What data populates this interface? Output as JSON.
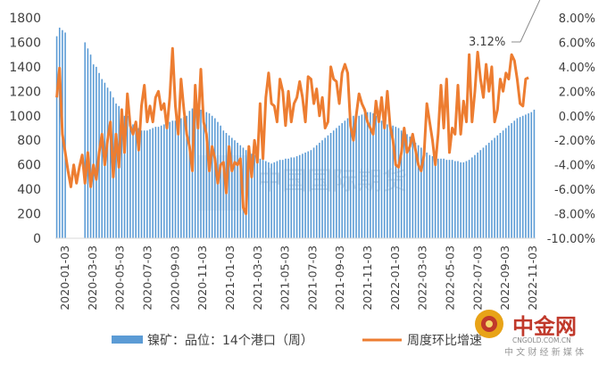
{
  "chart_data": {
    "type": "bar",
    "x_tick_labels": [
      "2020-01-03",
      "2020-03-03",
      "2020-05-03",
      "2020-07-03",
      "2020-09-03",
      "2020-11-03",
      "2021-01-03",
      "2021-03-03",
      "2021-05-03",
      "2021-07-03",
      "2021-09-03",
      "2021-11-03",
      "2022-01-03",
      "2022-03-03",
      "2022-05-03",
      "2022-07-03",
      "2022-09-03",
      "2022-11-03"
    ],
    "y_left": {
      "ylim": [
        0,
        1800
      ],
      "ticks": [
        "0",
        "200",
        "400",
        "600",
        "800",
        "1000",
        "1200",
        "1400",
        "1600",
        "1800"
      ]
    },
    "y_right": {
      "ylim": [
        -10,
        8
      ],
      "ticks": [
        "-10.00%",
        "-8.00%",
        "-6.00%",
        "-4.00%",
        "-2.00%",
        "0.00%",
        "2.00%",
        "4.00%",
        "6.00%",
        "8.00%"
      ]
    },
    "grid": false,
    "legend_position": "bottom",
    "series": [
      {
        "name": "镍矿：品位：14个港口（周）",
        "type": "bar",
        "axis": "left",
        "color": "#5b9bd5",
        "values": [
          1650,
          1720,
          1700,
          1680,
          0,
          0,
          0,
          0,
          0,
          0,
          1600,
          1550,
          1500,
          1420,
          1400,
          1350,
          1300,
          1270,
          1230,
          1200,
          1150,
          1100,
          1080,
          1050,
          1000,
          1000,
          960,
          930,
          910,
          900,
          880,
          880,
          880,
          890,
          900,
          910,
          910,
          920,
          930,
          950,
          950,
          960,
          960,
          970,
          980,
          990,
          1000,
          1040,
          1060,
          1070,
          1060,
          1050,
          1040,
          1030,
          1020,
          1000,
          980,
          950,
          920,
          880,
          860,
          840,
          820,
          800,
          780,
          760,
          740,
          720,
          700,
          690,
          680,
          660,
          650,
          640,
          630,
          620,
          610,
          620,
          630,
          640,
          640,
          650,
          650,
          660,
          660,
          670,
          680,
          690,
          700,
          710,
          720,
          740,
          760,
          780,
          800,
          820,
          840,
          860,
          880,
          900,
          920,
          940,
          960,
          980,
          990,
          1000,
          1010,
          1000,
          1010,
          1020,
          1030,
          1030,
          1020,
          1000,
          980,
          960,
          940,
          930,
          920,
          920,
          910,
          900,
          880,
          860,
          850,
          830,
          800,
          780,
          760,
          740,
          720,
          700,
          680,
          670,
          660,
          650,
          650,
          650,
          640,
          640,
          640,
          630,
          630,
          620,
          620,
          630,
          640,
          660,
          680,
          700,
          720,
          740,
          760,
          780,
          800,
          820,
          840,
          860,
          880,
          900,
          920,
          940,
          960,
          980,
          990,
          1000,
          1010,
          1020,
          1030,
          1050
        ]
      },
      {
        "name": "周度环比增速",
        "type": "line",
        "axis": "right",
        "color": "#ed7d31",
        "values": [
          1.5,
          3.9,
          -1.5,
          -3,
          -4.5,
          -5.8,
          -4,
          -5.5,
          -4.2,
          -3.2,
          -5.5,
          -3,
          -5.8,
          -4,
          -5.2,
          -3,
          -1.5,
          -4,
          -2,
          -0.5,
          -5,
          -1.5,
          -4.2,
          0.5,
          -3,
          1.8,
          -0.8,
          -1.5,
          -0.5,
          -2.8,
          0.8,
          2.5,
          -0.5,
          0.8,
          -0.5,
          1.5,
          2,
          0.5,
          1,
          -1,
          1.5,
          5.5,
          0.8,
          -1.5,
          3,
          0.5,
          -1.5,
          -2.5,
          -4.5,
          2.5,
          -1,
          3.8,
          -0.5,
          -1.5,
          -4.5,
          -2.5,
          -3.5,
          -5.5,
          -4,
          -3.8,
          -6.3,
          -2.5,
          -4.5,
          -3.8,
          -4,
          -3.5,
          -7.5,
          -8,
          -2.5,
          -5,
          -2,
          -3.8,
          1,
          -3.5,
          1.5,
          3.5,
          1,
          0.8,
          -0.5,
          3,
          2,
          -0.8,
          2,
          -0.5,
          1,
          1.5,
          2.8,
          1.5,
          -0.5,
          3.2,
          3,
          1,
          2.2,
          0,
          1.5,
          -1,
          -0.5,
          4,
          3,
          2.8,
          1,
          3.5,
          4.2,
          3.5,
          -0.8,
          -2,
          0,
          1.8,
          1,
          0.5,
          -0.5,
          -1,
          -1.5,
          1.2,
          -0.5,
          1.5,
          -1,
          2,
          -0.8,
          -2,
          -4,
          -4.2,
          -3,
          -1,
          -3,
          -2.5,
          -1.5,
          -2.8,
          -4,
          -4.5,
          -3.2,
          1,
          -0.5,
          -2,
          -4,
          -1.5,
          2.5,
          -1,
          3,
          -3,
          -1,
          -1.5,
          2.5,
          -1.5,
          1.2,
          -0.5,
          5,
          -0.5,
          2,
          5.2,
          3,
          1.5,
          4.2,
          2,
          4,
          -0.5,
          0.5,
          3,
          2,
          3.5,
          3,
          5,
          4.5,
          3,
          1,
          0.8,
          3,
          3.12
        ]
      }
    ],
    "annotations": [
      {
        "text": "3.12%",
        "series_index": 1,
        "point_index": 171
      }
    ]
  },
  "watermark": {
    "text": "中国国际期货"
  },
  "logo": {
    "name": "中金网",
    "domain": "CNGOLD.COM.CN",
    "tagline": "中 文 财 经 新 媒 体"
  }
}
